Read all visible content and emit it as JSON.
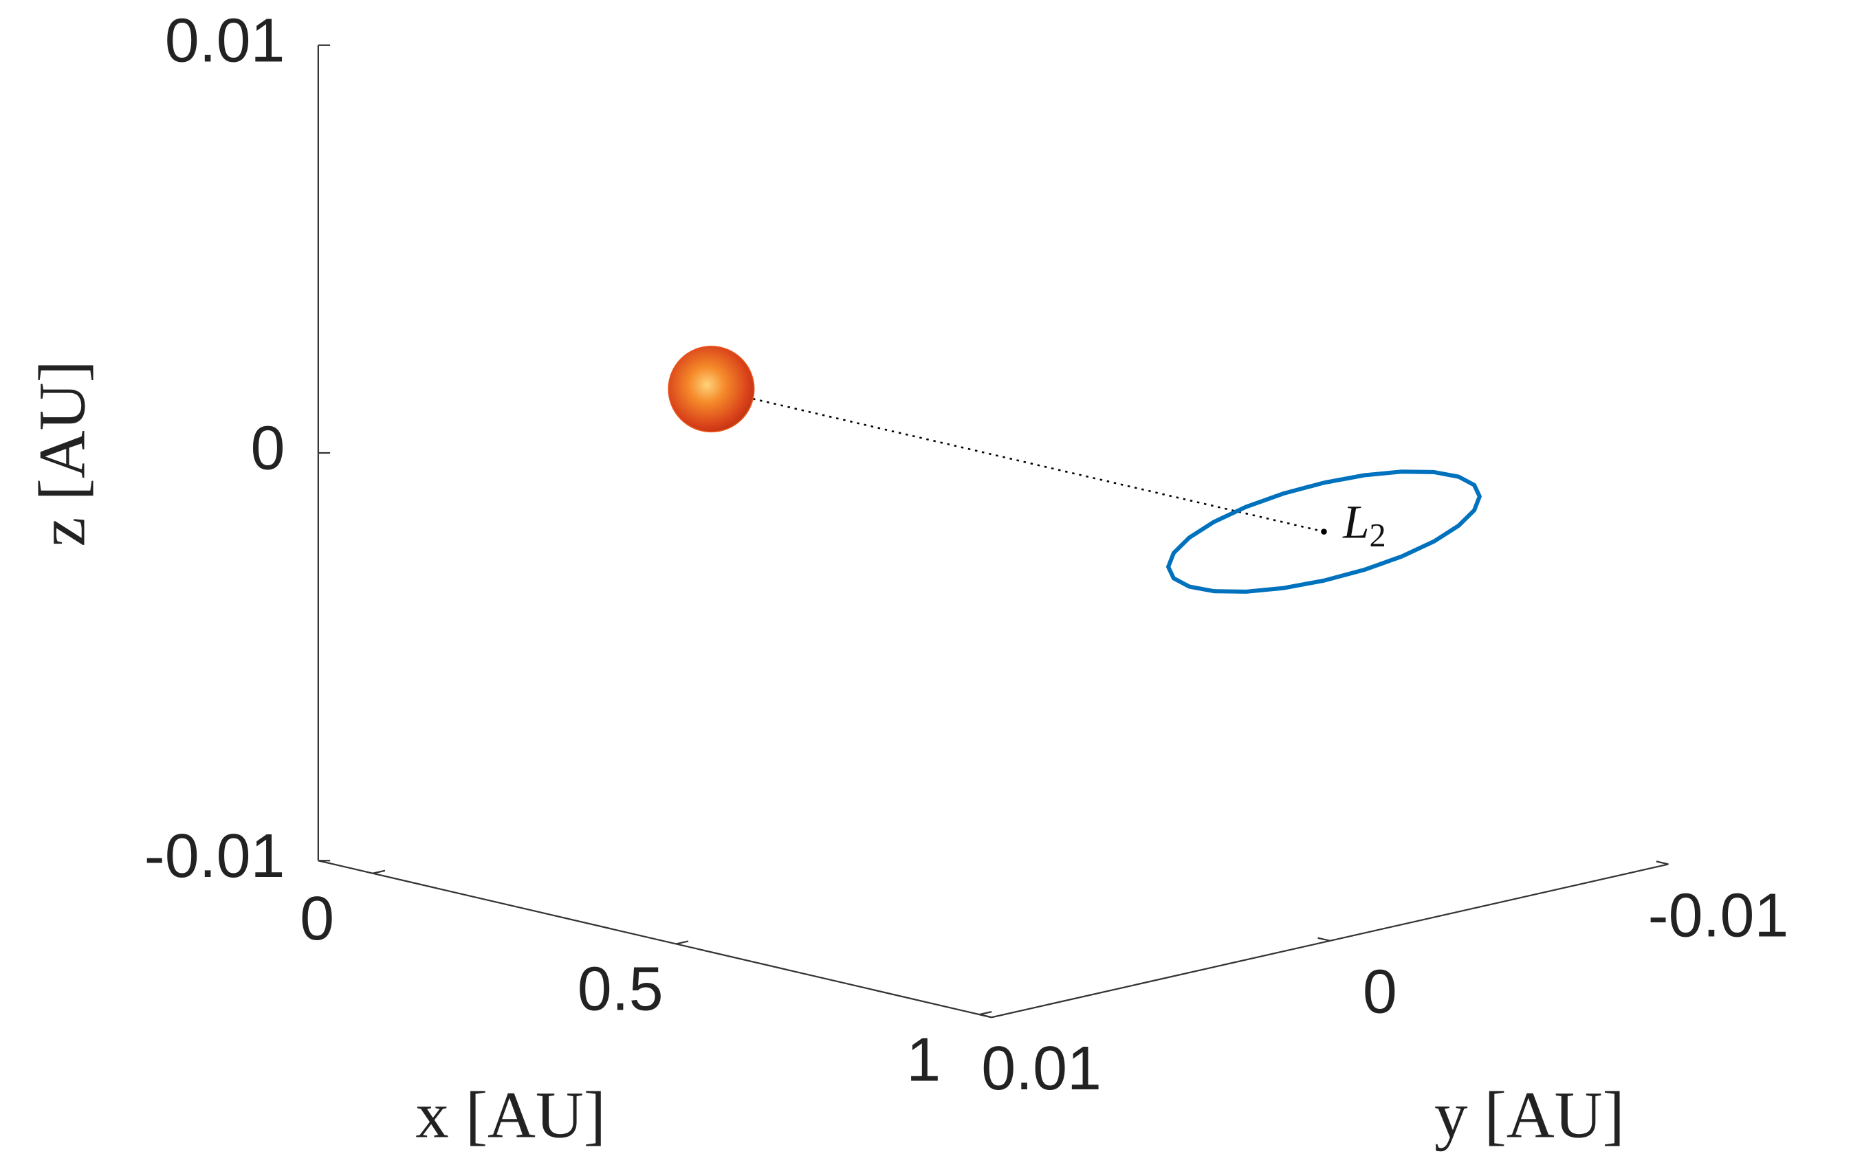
{
  "chart_data": {
    "type": "line3d",
    "xlabel": "x [AU]",
    "ylabel": "y [AU]",
    "zlabel": "z [AU]",
    "xlim": [
      -0.09,
      1.02
    ],
    "xticks": [
      0,
      0.5,
      1
    ],
    "ylim": [
      -0.01,
      0.01
    ],
    "yticks": [
      -0.01,
      0,
      0.01
    ],
    "zlim": [
      -0.01,
      0.01
    ],
    "zticks": [
      -0.01,
      0,
      0.01
    ],
    "sun": {
      "color": "#e8501a",
      "x": [
        0
      ],
      "y": [
        0
      ],
      "z": [
        0
      ]
    },
    "l2": {
      "label": "L",
      "subscript": "2",
      "color": "#000000",
      "x": [
        1.01
      ],
      "y": [
        0
      ],
      "z": [
        0
      ]
    },
    "orbit": {
      "color": "#0072bd",
      "x": [
        1.01,
        1.01,
        1.01,
        1.01,
        1.01,
        1.01,
        1.01,
        1.01,
        1.01,
        1.01,
        1.01,
        1.01,
        1.01,
        1.01,
        1.01,
        1.01,
        1.01,
        1.01,
        1.01,
        1.01,
        1.01,
        1.01,
        1.01,
        1.01,
        1.01
      ],
      "y": [
        0,
        0.00119,
        0.0023,
        0.00325,
        0.00398,
        0.00444,
        0.0046,
        0.00444,
        0.00398,
        0.00325,
        0.0023,
        0.00119,
        0,
        -0.00119,
        -0.0023,
        -0.00325,
        -0.00398,
        -0.00444,
        -0.0046,
        -0.00444,
        -0.00398,
        -0.00325,
        -0.0023,
        -0.00119,
        0
      ],
      "z": [
        0.0012,
        0.00116,
        0.00104,
        0.00085,
        0.0006,
        0.00031,
        0,
        -0.00031,
        -0.0006,
        -0.00085,
        -0.00104,
        -0.00116,
        -0.0012,
        -0.00116,
        -0.00104,
        -0.00085,
        -0.0006,
        -0.00031,
        0,
        0.00031,
        0.0006,
        0.00085,
        0.00104,
        0.00116,
        0.0012
      ]
    }
  }
}
